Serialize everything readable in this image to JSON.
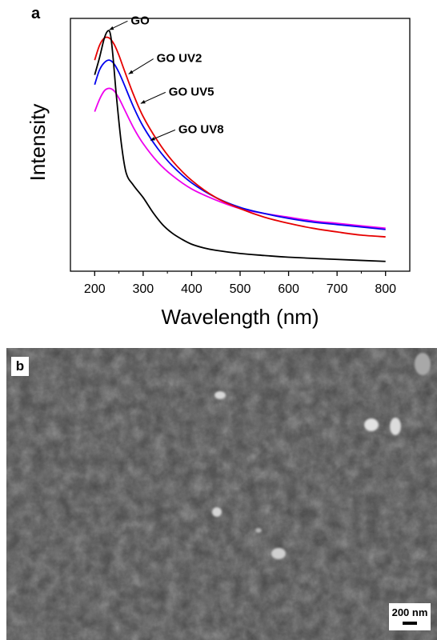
{
  "panel_a": {
    "label": "a"
  },
  "chart_data": {
    "type": "line",
    "title": "",
    "xlabel": "Wavelength (nm)",
    "ylabel": "Intensity",
    "xlim": [
      150,
      850
    ],
    "ylim": [
      0,
      1.03
    ],
    "xticks": [
      200,
      300,
      400,
      500,
      600,
      700,
      800
    ],
    "yticks_shown": false,
    "grid": false,
    "legend": "none (curves labeled by arrows)",
    "series": [
      {
        "name": "GO",
        "color": "#000000",
        "x": [
          200,
          210,
          220,
          228,
          233,
          238,
          245,
          255,
          265,
          280,
          300,
          320,
          340,
          360,
          380,
          400,
          425,
          450,
          500,
          550,
          600,
          700,
          800
        ],
        "y": [
          0.8,
          0.87,
          0.95,
          0.98,
          0.96,
          0.87,
          0.71,
          0.52,
          0.4,
          0.35,
          0.3,
          0.24,
          0.19,
          0.155,
          0.13,
          0.11,
          0.095,
          0.085,
          0.072,
          0.064,
          0.057,
          0.048,
          0.04
        ]
      },
      {
        "name": "GO UV2",
        "color": "#e60000",
        "x": [
          200,
          210,
          220,
          230,
          240,
          250,
          260,
          280,
          300,
          330,
          360,
          400,
          450,
          500,
          550,
          600,
          650,
          700,
          750,
          800
        ],
        "y": [
          0.86,
          0.92,
          0.95,
          0.95,
          0.925,
          0.88,
          0.825,
          0.72,
          0.63,
          0.53,
          0.45,
          0.37,
          0.3,
          0.255,
          0.22,
          0.195,
          0.175,
          0.16,
          0.147,
          0.14
        ]
      },
      {
        "name": "GO UV5",
        "color": "#0000ee",
        "x": [
          200,
          210,
          220,
          230,
          240,
          250,
          260,
          280,
          300,
          330,
          360,
          400,
          450,
          500,
          550,
          600,
          650,
          700,
          750,
          800
        ],
        "y": [
          0.76,
          0.82,
          0.85,
          0.86,
          0.845,
          0.81,
          0.765,
          0.67,
          0.59,
          0.5,
          0.43,
          0.36,
          0.3,
          0.26,
          0.235,
          0.215,
          0.2,
          0.19,
          0.18,
          0.17
        ]
      },
      {
        "name": "GO UV8",
        "color": "#ee00ee",
        "x": [
          200,
          210,
          220,
          230,
          240,
          250,
          260,
          280,
          300,
          330,
          360,
          400,
          450,
          500,
          550,
          600,
          650,
          700,
          750,
          800
        ],
        "y": [
          0.65,
          0.7,
          0.735,
          0.745,
          0.735,
          0.705,
          0.665,
          0.585,
          0.52,
          0.445,
          0.39,
          0.335,
          0.29,
          0.255,
          0.235,
          0.22,
          0.205,
          0.195,
          0.185,
          0.175
        ]
      }
    ],
    "annotations": [
      {
        "text": "GO",
        "arrow_to": [
          225,
          0.98
        ]
      },
      {
        "text": "GO UV2",
        "arrow_to": [
          265,
          0.8
        ]
      },
      {
        "text": "GO UV5",
        "arrow_to": [
          290,
          0.68
        ]
      },
      {
        "text": "GO UV8",
        "arrow_to": [
          310,
          0.53
        ]
      }
    ]
  },
  "panel_b": {
    "label": "b",
    "scale_bar": "200 nm",
    "background_color": "#4a4a4a"
  }
}
